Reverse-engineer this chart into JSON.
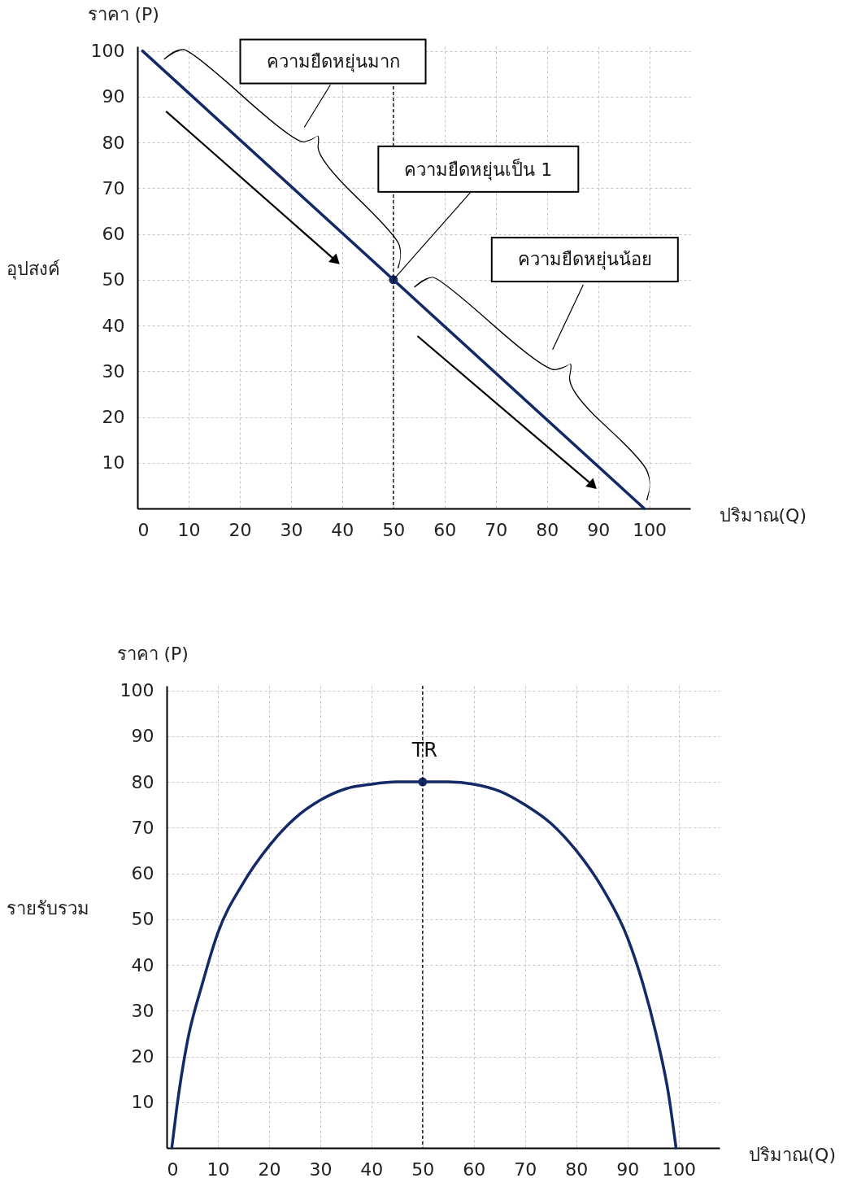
{
  "chart_data": [
    {
      "type": "line",
      "ylabel": "ราคา (P)",
      "xlabel": "ปริมาณ(Q)",
      "xlim": [
        0,
        108
      ],
      "ylim": [
        0,
        101
      ],
      "xticks": [
        0,
        10,
        20,
        30,
        40,
        50,
        60,
        70,
        80,
        90,
        100
      ],
      "yticks": [
        10,
        20,
        30,
        40,
        50,
        60,
        70,
        80,
        90,
        100
      ],
      "grid": true,
      "annotations": [
        "อุปสงค์",
        "ความยืดหยุ่นมาก",
        {
          "text": "ความยืดหยุ่นเป็น 1",
          "x": 50,
          "y": 50
        },
        "ความยืดหยุ่นน้อย"
      ],
      "ref_lines": [
        {
          "axis": "x",
          "value": 50,
          "color": "#000000",
          "line_style": "dashed"
        }
      ],
      "series": [
        {
          "color": "#142a66",
          "x": [
            1,
            99
          ],
          "values": [
            100,
            0
          ]
        },
        {
          "type": "scatter",
          "color": "#142a66",
          "marker": "circle",
          "x": [
            50
          ],
          "values": [
            50
          ]
        }
      ]
    },
    {
      "type": "line",
      "ylabel": "ราคา (P)",
      "xlabel": "ปริมาณ(Q)",
      "xlim": [
        0,
        108
      ],
      "ylim": [
        0,
        101
      ],
      "xticks": [
        0,
        10,
        20,
        30,
        40,
        50,
        60,
        70,
        80,
        90,
        100
      ],
      "yticks": [
        10,
        20,
        30,
        40,
        50,
        60,
        70,
        80,
        90,
        100
      ],
      "grid": true,
      "annotations": [
        "รายรับรวม"
      ],
      "ref_lines": [
        {
          "axis": "x",
          "value": 50,
          "color": "#000000",
          "line_style": "dashed"
        }
      ],
      "series": [
        {
          "name": "TR",
          "color": "#142a66",
          "x": [
            1,
            2,
            4,
            7,
            10,
            15,
            20,
            25,
            30,
            35,
            40,
            45,
            50,
            55,
            60,
            65,
            70,
            75,
            80,
            85,
            90,
            93,
            96,
            98,
            99.5
          ],
          "values": [
            0,
            9,
            23,
            36,
            47,
            58,
            66,
            72,
            76,
            78.5,
            79.5,
            80,
            80,
            80,
            79.5,
            78,
            75,
            71,
            65,
            57,
            46,
            36,
            23,
            12,
            0
          ]
        },
        {
          "type": "scatter",
          "color": "#142a66",
          "marker": "circle",
          "x": [
            50
          ],
          "values": [
            80
          ]
        }
      ]
    }
  ]
}
